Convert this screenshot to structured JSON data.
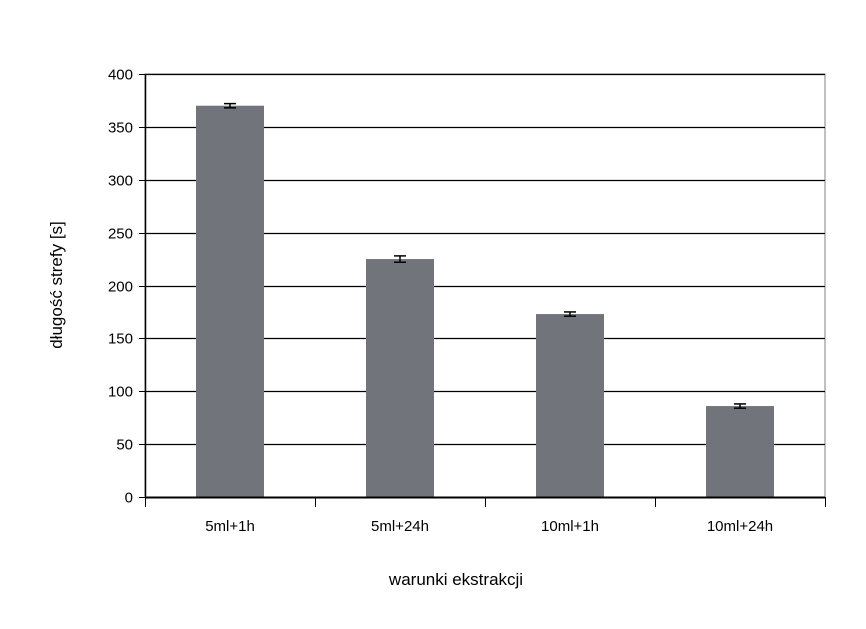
{
  "chart_data": {
    "type": "bar",
    "categories": [
      "5ml+1h",
      "5ml+24h",
      "10ml+1h",
      "10ml+24h"
    ],
    "values": [
      370,
      225,
      173,
      86
    ],
    "errors": [
      2,
      3,
      2,
      2
    ],
    "xlabel": "warunki ekstrakcji",
    "ylabel": "długość strefy [s]",
    "ylim": [
      0,
      400
    ],
    "yticks": [
      0,
      50,
      100,
      150,
      200,
      250,
      300,
      350,
      400
    ],
    "grid": true,
    "bar_color": "#71747b",
    "grid_color": "#000000"
  }
}
